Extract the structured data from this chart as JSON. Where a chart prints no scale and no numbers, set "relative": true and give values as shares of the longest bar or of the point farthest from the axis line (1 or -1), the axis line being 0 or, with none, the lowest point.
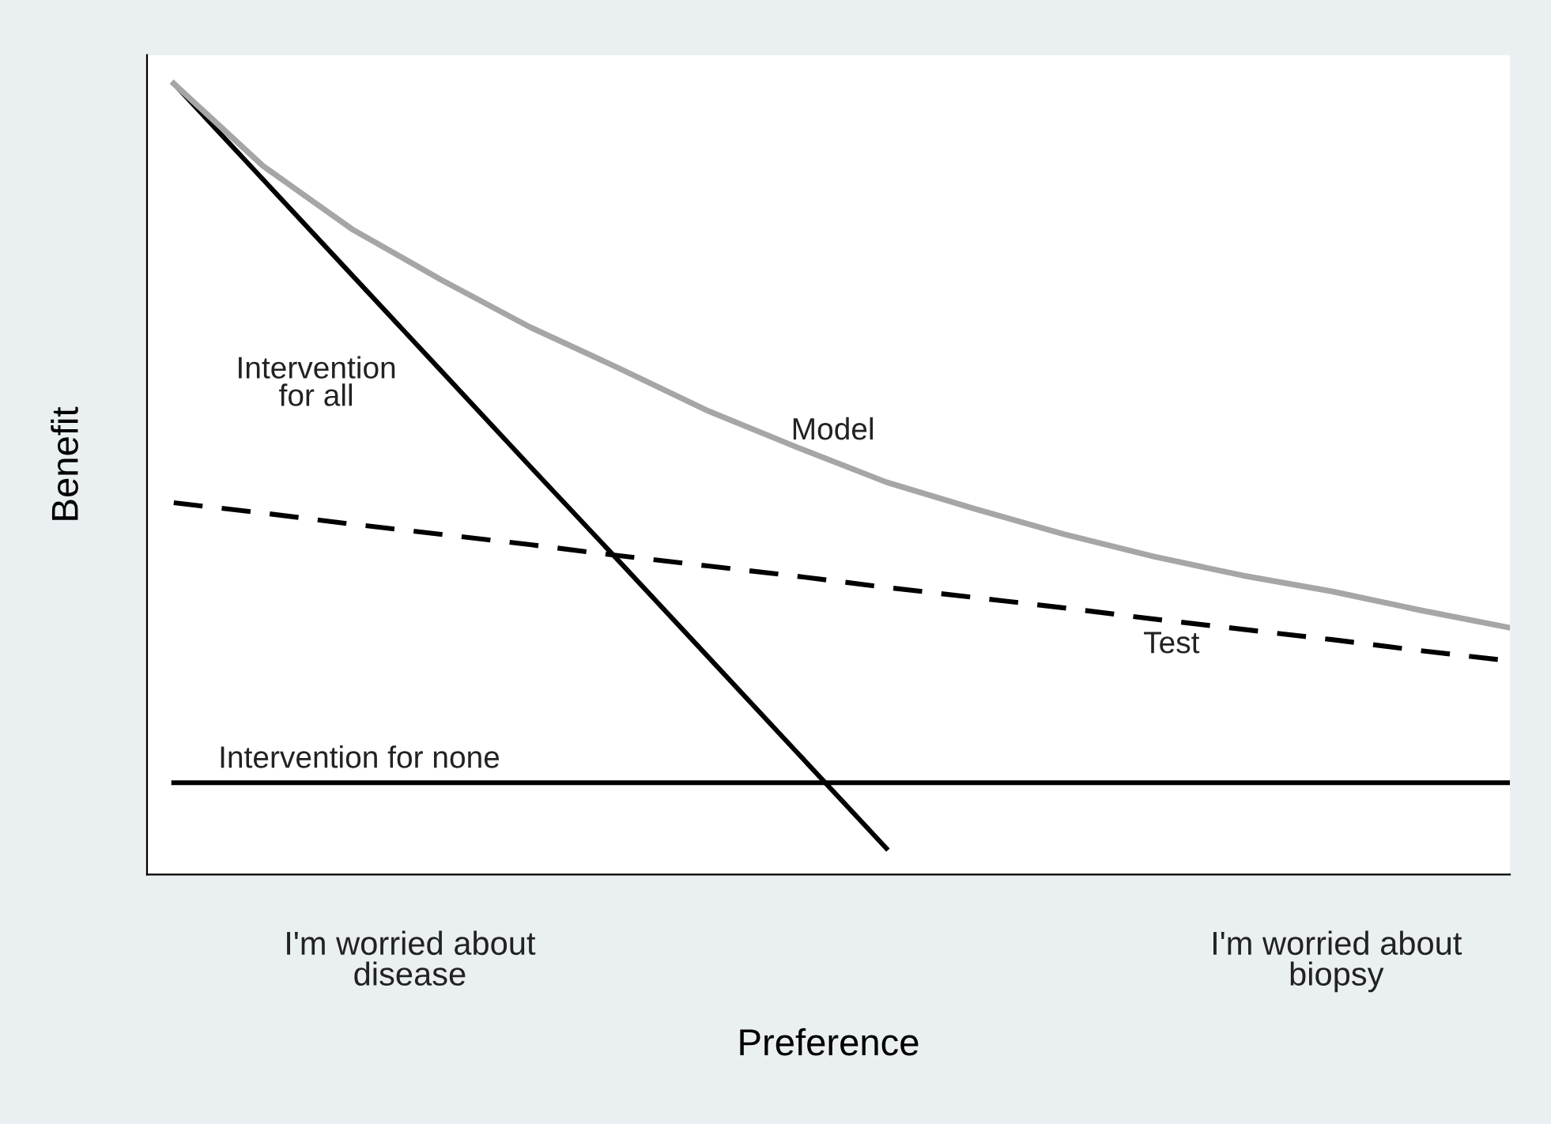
{
  "chart_data": {
    "type": "line",
    "relative": true,
    "xlabel": "Preference",
    "ylabel": "Benefit",
    "legend": false,
    "categories": [
      null,
      null,
      null,
      null,
      null,
      null,
      null,
      null,
      null,
      null,
      null,
      null,
      null,
      null,
      null,
      null
    ],
    "series": [
      {
        "name": "Intervention\nfor all",
        "color": "#000000",
        "line_style": "solid",
        "values": [
          1.0,
          0.879,
          0.758,
          0.637,
          0.516,
          0.396,
          0.275,
          0.154,
          0.033,
          null,
          null,
          null,
          null,
          null,
          null,
          null
        ]
      },
      {
        "name": "Model",
        "color": "#a6a6a6",
        "line_style": "solid",
        "values": [
          1.0,
          0.896,
          0.816,
          0.752,
          0.692,
          0.64,
          0.586,
          0.54,
          0.496,
          0.462,
          0.43,
          0.402,
          0.378,
          0.358,
          0.334,
          0.312
        ]
      },
      {
        "name": "Test",
        "color": "#000000",
        "line_style": "dashed",
        "values": [
          0.47,
          0.457,
          0.443,
          0.43,
          0.417,
          0.403,
          0.39,
          0.377,
          0.363,
          0.35,
          0.337,
          0.323,
          0.31,
          0.297,
          0.283,
          0.27
        ]
      },
      {
        "name": "Intervention for none",
        "color": "#000000",
        "line_style": "solid",
        "values": [
          0.116,
          0.116,
          0.116,
          0.116,
          0.116,
          0.116,
          0.116,
          0.116,
          0.116,
          0.116,
          0.116,
          0.116,
          0.116,
          0.116,
          0.116,
          0.116
        ]
      }
    ],
    "annotations": [
      "I'm worried about\ndisease",
      "I'm worried about\nbiopsy"
    ]
  }
}
